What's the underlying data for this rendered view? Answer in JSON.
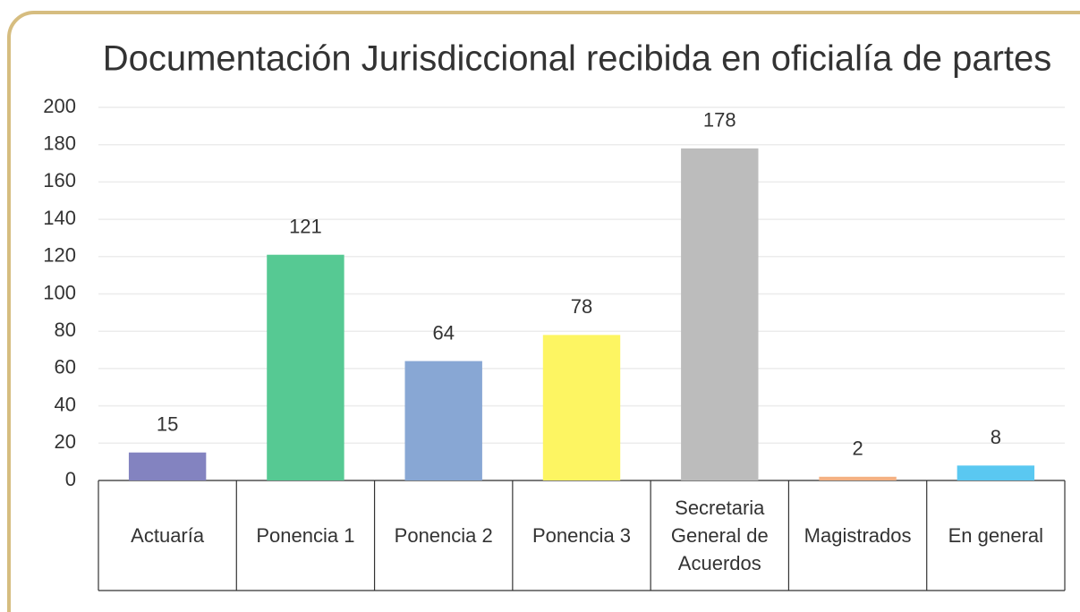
{
  "chart_data": {
    "type": "bar",
    "title": "Documentación Jurisdiccional recibida en oficialía de partes",
    "categories": [
      "Actuaría",
      "Ponencia 1",
      "Ponencia 2",
      "Ponencia 3",
      "Secretaria General de Acuerdos",
      "Magistrados",
      "En general"
    ],
    "values": [
      15,
      121,
      64,
      78,
      178,
      2,
      8
    ],
    "colors": [
      "#8383c0",
      "#56c993",
      "#88a7d4",
      "#fdf562",
      "#bcbcbc",
      "#f4b183",
      "#5ac8f1"
    ],
    "ylim": [
      0,
      200
    ],
    "yticks": [
      0,
      20,
      40,
      60,
      80,
      100,
      120,
      140,
      160,
      180,
      200
    ],
    "grid": true
  }
}
